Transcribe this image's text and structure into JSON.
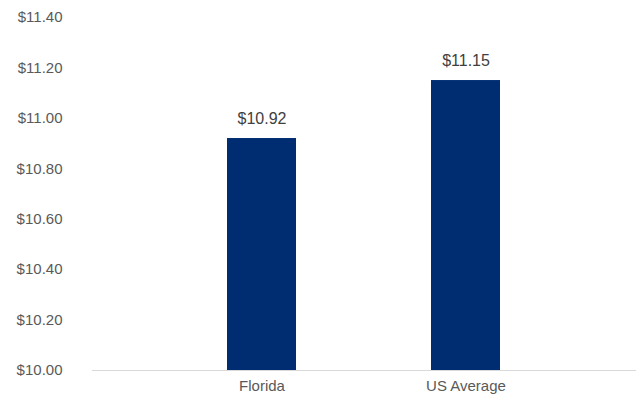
{
  "chart_data": {
    "type": "bar",
    "categories": [
      "Florida",
      "US Average"
    ],
    "values": [
      10.92,
      11.15
    ],
    "value_labels": [
      "$10.92",
      "$11.15"
    ],
    "data_labels": true,
    "color": "#002d72",
    "ylim": [
      10.0,
      11.4
    ],
    "yticks": [
      {
        "value": 10.0,
        "label": "$10.00"
      },
      {
        "value": 10.2,
        "label": "$10.20"
      },
      {
        "value": 10.4,
        "label": "$10.40"
      },
      {
        "value": 10.6,
        "label": "$10.60"
      },
      {
        "value": 10.8,
        "label": "$10.80"
      },
      {
        "value": 11.0,
        "label": "$11.00"
      },
      {
        "value": 11.2,
        "label": "$11.20"
      },
      {
        "value": 11.4,
        "label": "$11.40"
      }
    ],
    "grid": false
  }
}
